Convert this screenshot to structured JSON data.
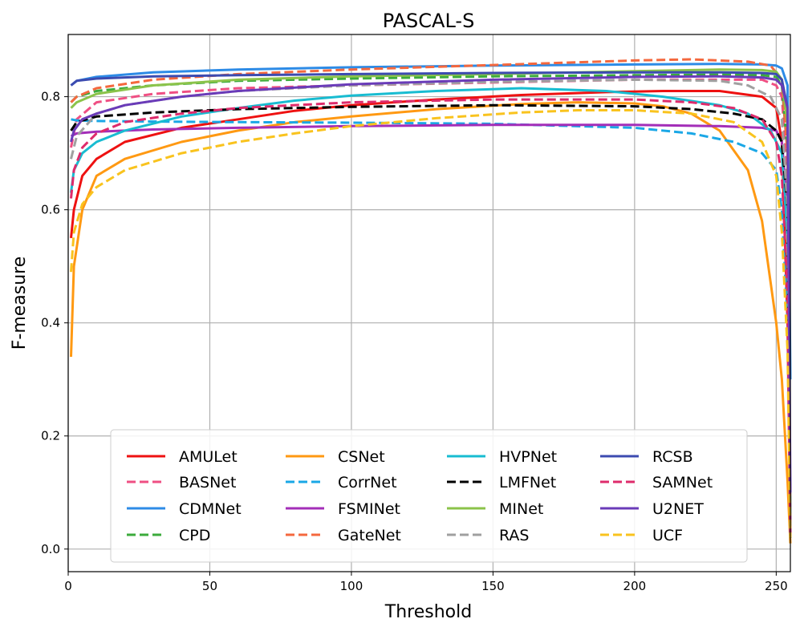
{
  "chart_data": {
    "type": "line",
    "title": "PASCAL-S",
    "xlabel": "Threshold",
    "ylabel": "F-measure",
    "xlim": [
      0,
      255
    ],
    "ylim": [
      -0.04,
      0.91
    ],
    "grid": true,
    "legend_position": "lower-center",
    "xticks": [
      0,
      50,
      100,
      150,
      200,
      250
    ],
    "yticks": [
      0.0,
      0.2,
      0.4,
      0.6,
      0.8
    ],
    "xtick_labels": [
      "0",
      "50",
      "100",
      "150",
      "200",
      "250"
    ],
    "ytick_labels": [
      "0.0",
      "0.2",
      "0.4",
      "0.6",
      "0.8"
    ],
    "series": [
      {
        "name": "AMULet",
        "color": "#ee1111",
        "dash": "solid",
        "x": [
          1,
          2,
          5,
          10,
          20,
          40,
          60,
          80,
          100,
          130,
          160,
          190,
          210,
          230,
          245,
          250,
          252,
          254,
          255
        ],
        "y": [
          0.55,
          0.6,
          0.66,
          0.69,
          0.72,
          0.745,
          0.76,
          0.775,
          0.785,
          0.795,
          0.803,
          0.808,
          0.81,
          0.81,
          0.8,
          0.78,
          0.72,
          0.4,
          0.02
        ]
      },
      {
        "name": "BASNet",
        "color": "#ef4f83",
        "dash": "dashed",
        "x": [
          1,
          3,
          10,
          30,
          60,
          100,
          150,
          200,
          230,
          245,
          250,
          252,
          254,
          255
        ],
        "y": [
          0.71,
          0.76,
          0.79,
          0.805,
          0.815,
          0.82,
          0.825,
          0.83,
          0.83,
          0.83,
          0.82,
          0.8,
          0.65,
          0.02
        ]
      },
      {
        "name": "CDMNet",
        "color": "#2d8be6",
        "dash": "solid",
        "x": [
          1,
          3,
          10,
          30,
          60,
          100,
          150,
          200,
          230,
          245,
          250,
          252,
          254,
          255
        ],
        "y": [
          0.82,
          0.828,
          0.835,
          0.843,
          0.848,
          0.852,
          0.855,
          0.857,
          0.858,
          0.857,
          0.855,
          0.85,
          0.82,
          0.3
        ]
      },
      {
        "name": "CPD",
        "color": "#3cab3c",
        "dash": "dashed",
        "x": [
          1,
          3,
          10,
          30,
          60,
          100,
          150,
          200,
          230,
          245,
          250,
          252,
          254,
          255
        ],
        "y": [
          0.79,
          0.8,
          0.81,
          0.82,
          0.828,
          0.832,
          0.836,
          0.838,
          0.839,
          0.838,
          0.835,
          0.82,
          0.7,
          0.02
        ]
      },
      {
        "name": "CSNet",
        "color": "#ff9912",
        "dash": "solid",
        "x": [
          1,
          2,
          5,
          10,
          20,
          40,
          60,
          80,
          100,
          130,
          160,
          180,
          200,
          210,
          220,
          230,
          240,
          245,
          250,
          252,
          254,
          255
        ],
        "y": [
          0.34,
          0.5,
          0.6,
          0.66,
          0.69,
          0.72,
          0.74,
          0.755,
          0.765,
          0.778,
          0.787,
          0.79,
          0.788,
          0.783,
          0.77,
          0.74,
          0.67,
          0.58,
          0.4,
          0.3,
          0.12,
          0.01
        ]
      },
      {
        "name": "CorrNet",
        "color": "#1aa7e6",
        "dash": "dashed",
        "x": [
          1,
          3,
          10,
          30,
          60,
          100,
          150,
          200,
          220,
          235,
          245,
          250,
          252,
          254,
          255
        ],
        "y": [
          0.76,
          0.758,
          0.757,
          0.756,
          0.755,
          0.754,
          0.752,
          0.745,
          0.735,
          0.72,
          0.7,
          0.67,
          0.6,
          0.4,
          0.02
        ]
      },
      {
        "name": "FSMINet",
        "color": "#a32eb8",
        "dash": "solid",
        "x": [
          1,
          3,
          10,
          30,
          60,
          100,
          150,
          200,
          230,
          245,
          250,
          252,
          254,
          255
        ],
        "y": [
          0.73,
          0.735,
          0.738,
          0.742,
          0.745,
          0.748,
          0.75,
          0.75,
          0.748,
          0.745,
          0.74,
          0.72,
          0.6,
          0.02
        ]
      },
      {
        "name": "GateNet",
        "color": "#f4683e",
        "dash": "dashed",
        "x": [
          1,
          3,
          10,
          30,
          60,
          100,
          150,
          200,
          220,
          240,
          248,
          252,
          254,
          255
        ],
        "y": [
          0.79,
          0.8,
          0.815,
          0.83,
          0.84,
          0.848,
          0.856,
          0.864,
          0.866,
          0.862,
          0.855,
          0.83,
          0.7,
          0.02
        ]
      },
      {
        "name": "HVPNet",
        "color": "#18bcd1",
        "dash": "solid",
        "x": [
          1,
          2,
          5,
          10,
          20,
          40,
          60,
          80,
          100,
          130,
          160,
          190,
          210,
          230,
          240,
          248,
          252,
          254,
          255
        ],
        "y": [
          0.63,
          0.67,
          0.7,
          0.72,
          0.74,
          0.765,
          0.78,
          0.793,
          0.802,
          0.81,
          0.815,
          0.81,
          0.8,
          0.785,
          0.77,
          0.74,
          0.7,
          0.55,
          0.02
        ]
      },
      {
        "name": "LMFNet",
        "color": "#000000",
        "dash": "dashed",
        "x": [
          1,
          3,
          10,
          30,
          60,
          100,
          150,
          200,
          220,
          235,
          245,
          250,
          252,
          254,
          255
        ],
        "y": [
          0.74,
          0.755,
          0.765,
          0.772,
          0.778,
          0.782,
          0.785,
          0.783,
          0.778,
          0.77,
          0.76,
          0.74,
          0.72,
          0.6,
          0.02
        ]
      },
      {
        "name": "MINet",
        "color": "#8bc34a",
        "dash": "solid",
        "x": [
          1,
          3,
          10,
          30,
          60,
          100,
          150,
          200,
          230,
          245,
          250,
          252,
          254,
          255
        ],
        "y": [
          0.78,
          0.79,
          0.805,
          0.82,
          0.83,
          0.836,
          0.84,
          0.845,
          0.848,
          0.847,
          0.844,
          0.83,
          0.75,
          0.05
        ]
      },
      {
        "name": "RAS",
        "color": "#a0a0a0",
        "dash": "dashed",
        "x": [
          1,
          3,
          10,
          20,
          40,
          60,
          100,
          150,
          200,
          230,
          240,
          248,
          252,
          254,
          255
        ],
        "y": [
          0.69,
          0.73,
          0.77,
          0.785,
          0.8,
          0.81,
          0.82,
          0.826,
          0.83,
          0.828,
          0.82,
          0.8,
          0.76,
          0.6,
          0.02
        ]
      },
      {
        "name": "RCSB",
        "color": "#3c4bb0",
        "dash": "solid",
        "x": [
          1,
          3,
          10,
          30,
          60,
          100,
          150,
          200,
          230,
          245,
          250,
          252,
          254,
          255
        ],
        "y": [
          0.82,
          0.828,
          0.832,
          0.836,
          0.838,
          0.84,
          0.842,
          0.843,
          0.843,
          0.842,
          0.84,
          0.83,
          0.78,
          0.02
        ]
      },
      {
        "name": "SAMNet",
        "color": "#de2b6b",
        "dash": "dashed",
        "x": [
          1,
          2,
          5,
          10,
          20,
          40,
          60,
          100,
          150,
          200,
          220,
          235,
          245,
          250,
          252,
          254,
          255
        ],
        "y": [
          0.62,
          0.67,
          0.71,
          0.735,
          0.755,
          0.77,
          0.78,
          0.79,
          0.795,
          0.795,
          0.79,
          0.78,
          0.76,
          0.72,
          0.66,
          0.45,
          0.02
        ]
      },
      {
        "name": "U2NET",
        "color": "#6a3bb8",
        "dash": "solid",
        "x": [
          1,
          2,
          5,
          10,
          20,
          40,
          60,
          100,
          150,
          200,
          230,
          245,
          250,
          252,
          254,
          255
        ],
        "y": [
          0.72,
          0.74,
          0.76,
          0.77,
          0.785,
          0.8,
          0.81,
          0.822,
          0.83,
          0.835,
          0.836,
          0.834,
          0.83,
          0.82,
          0.78,
          0.1
        ]
      },
      {
        "name": "UCF",
        "color": "#f9c31e",
        "dash": "dashed",
        "x": [
          1,
          2,
          5,
          10,
          20,
          40,
          60,
          80,
          100,
          130,
          160,
          180,
          200,
          220,
          235,
          245,
          250,
          252,
          254,
          255
        ],
        "y": [
          0.49,
          0.56,
          0.61,
          0.64,
          0.67,
          0.7,
          0.72,
          0.735,
          0.748,
          0.762,
          0.772,
          0.776,
          0.776,
          0.77,
          0.755,
          0.72,
          0.66,
          0.56,
          0.35,
          0.02
        ]
      }
    ]
  }
}
